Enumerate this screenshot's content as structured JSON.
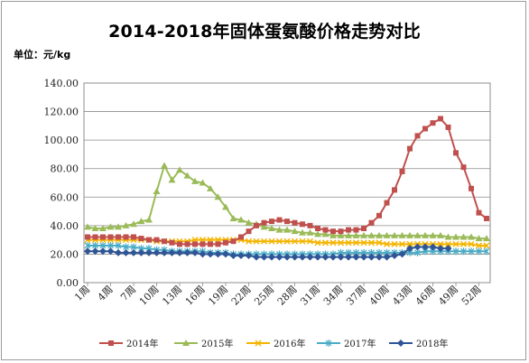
{
  "title": "2014-2018年固体蛋氨酸价格走势对比",
  "unit_label": "单位：元/kg",
  "chart_data": {
    "type": "line",
    "title": "2014-2018年固体蛋氨酸价格走势对比",
    "ylabel": "单位：元/kg",
    "xlabel": "",
    "ylim": [
      0,
      140
    ],
    "yticks": [
      "0.00",
      "20.00",
      "40.00",
      "60.00",
      "80.00",
      "100.00",
      "120.00",
      "140.00"
    ],
    "x_tick_labels": [
      "1周",
      "4周",
      "7周",
      "10周",
      "13周",
      "16周",
      "19周",
      "22周",
      "25周",
      "28周",
      "31周",
      "34周",
      "37周",
      "40周",
      "43周",
      "46周",
      "49周",
      "52周"
    ],
    "grid": "horizontal",
    "legend_position": "bottom",
    "series": [
      {
        "name": "2014年",
        "color": "#c0504d",
        "marker": "square",
        "values": [
          32,
          32,
          32,
          32,
          32,
          32,
          32,
          31,
          30,
          30,
          29,
          28,
          27,
          27,
          27,
          27,
          27,
          27,
          28,
          29,
          32,
          36,
          40,
          42,
          43,
          44,
          43,
          42,
          41,
          40,
          38,
          37,
          36,
          36,
          37,
          37,
          38,
          42,
          47,
          56,
          65,
          78,
          94,
          103,
          108,
          112,
          115,
          109,
          91,
          81,
          66,
          49,
          45
        ]
      },
      {
        "name": "2015年",
        "color": "#9bbb59",
        "marker": "triangle",
        "values": [
          39,
          38,
          38,
          39,
          39,
          40,
          41,
          43,
          44,
          64,
          82,
          72,
          79,
          75,
          71,
          70,
          66,
          60,
          53,
          45,
          44,
          42,
          41,
          39,
          38,
          37,
          37,
          36,
          35,
          35,
          34,
          34,
          33,
          33,
          33,
          33,
          33,
          33,
          33,
          33,
          33,
          33,
          33,
          33,
          33,
          33,
          33,
          32,
          32,
          32,
          32,
          31,
          31
        ]
      },
      {
        "name": "2016年",
        "color": "#f4b400",
        "marker": "x",
        "values": [
          30,
          30,
          30,
          30,
          30,
          30,
          30,
          30,
          30,
          29,
          29,
          29,
          29,
          29,
          30,
          30,
          30,
          30,
          30,
          30,
          30,
          29,
          29,
          29,
          29,
          29,
          29,
          29,
          29,
          29,
          28,
          28,
          28,
          28,
          28,
          28,
          28,
          28,
          28,
          27,
          27,
          27,
          27,
          27,
          27,
          27,
          27,
          27,
          27,
          27,
          27,
          26,
          26
        ]
      },
      {
        "name": "2017年",
        "color": "#4bacc6",
        "marker": "star",
        "values": [
          26,
          26,
          26,
          26,
          26,
          25,
          25,
          24,
          24,
          23,
          23,
          22,
          22,
          22,
          22,
          22,
          21,
          21,
          21,
          20,
          20,
          20,
          20,
          20,
          20,
          20,
          20,
          20,
          20,
          20,
          20,
          20,
          20,
          21,
          21,
          21,
          21,
          21,
          21,
          21,
          21,
          21,
          21,
          21,
          22,
          22,
          22,
          22,
          22,
          22,
          22,
          22,
          22
        ]
      },
      {
        "name": "2018年",
        "color": "#2f5597",
        "marker": "diamond",
        "values": [
          22,
          22,
          22,
          22,
          21,
          21,
          21,
          21,
          21,
          21,
          21,
          21,
          21,
          21,
          21,
          20,
          20,
          20,
          20,
          19,
          19,
          19,
          18,
          18,
          18,
          18,
          18,
          18,
          18,
          18,
          18,
          18,
          18,
          18,
          18,
          18,
          18,
          18,
          18,
          18,
          19,
          20,
          24,
          25,
          25,
          25,
          24,
          24,
          null,
          null,
          null,
          null,
          null
        ]
      }
    ]
  }
}
